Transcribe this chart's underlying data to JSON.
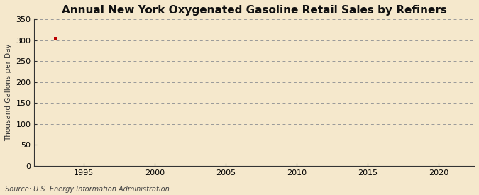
{
  "title": "Annual New York Oxygenated Gasoline Retail Sales by Refiners",
  "ylabel": "Thousand Gallons per Day",
  "source": "Source: U.S. Energy Information Administration",
  "background_color": "#f5e8cc",
  "plot_bg_color": "#f5e8cc",
  "data_x": [
    1993
  ],
  "data_y": [
    305
  ],
  "marker_color": "#bb0000",
  "marker_size": 3.5,
  "xlim": [
    1991.5,
    2022.5
  ],
  "ylim": [
    0,
    350
  ],
  "yticks": [
    0,
    50,
    100,
    150,
    200,
    250,
    300,
    350
  ],
  "xticks": [
    1995,
    2000,
    2005,
    2010,
    2015,
    2020
  ],
  "grid_color": "#999999",
  "grid_dash": [
    4,
    4
  ],
  "axis_color": "#333333",
  "title_fontsize": 11,
  "label_fontsize": 7.5,
  "tick_fontsize": 8,
  "source_fontsize": 7
}
